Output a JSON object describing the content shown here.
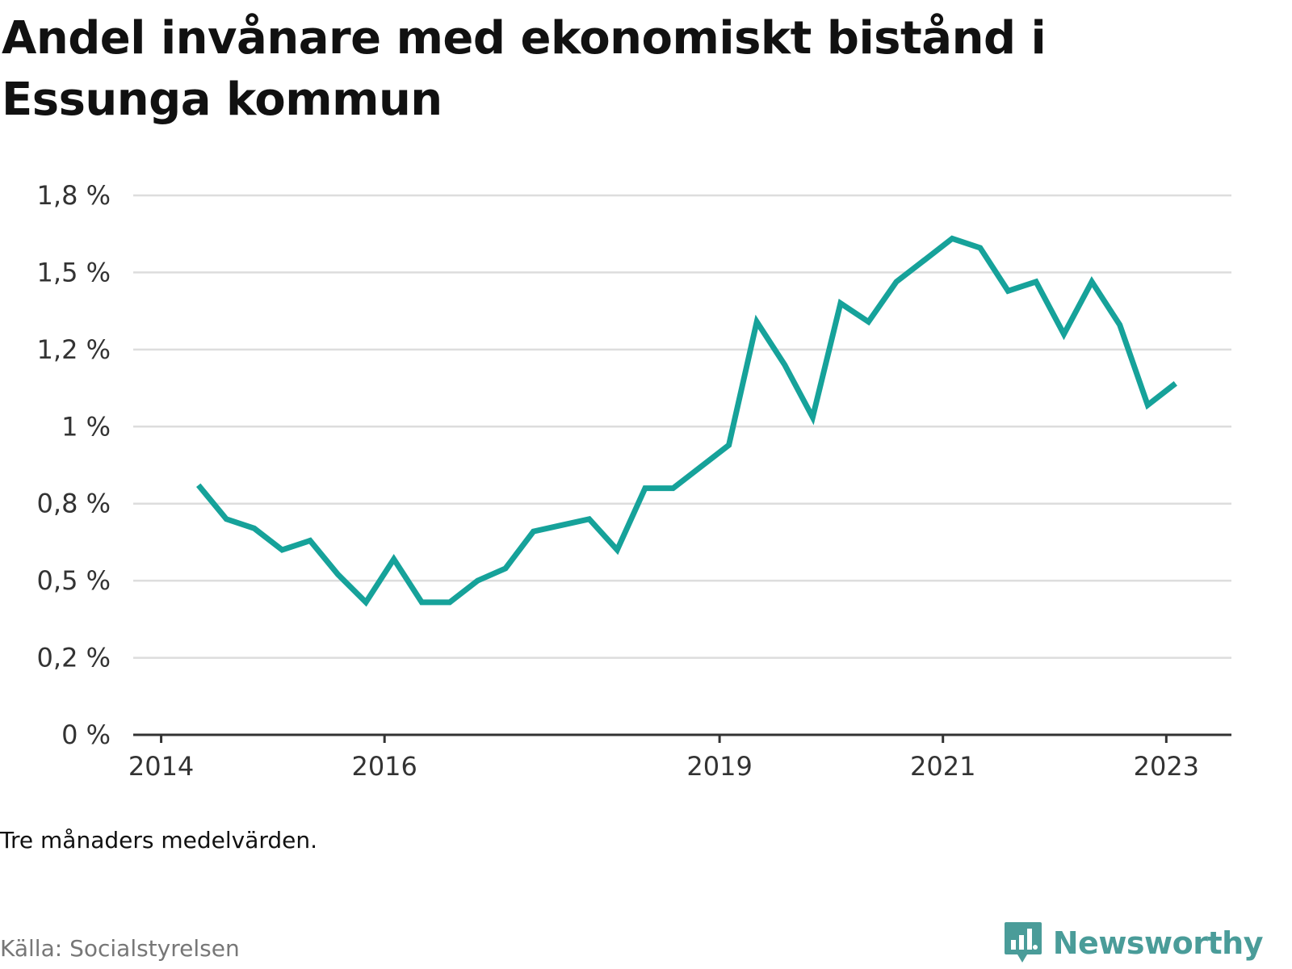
{
  "title": "Andel invånare med ekonomiskt bistånd i Essunga kommun",
  "note": "Tre månaders medelvärden.",
  "source": "Källa: Socialstyrelsen",
  "brand": {
    "name": "Newsworthy",
    "icon": "newsworthy-chart-bubble-icon",
    "color": "#4a9c99"
  },
  "chart_data": {
    "type": "line",
    "title": "Andel invånare med ekonomiskt bistånd i Essunga kommun",
    "xlabel": "",
    "ylabel": "",
    "x_ticks": [
      "2014",
      "2016",
      "2019",
      "2021",
      "2023"
    ],
    "y_ticks": [
      "0 %",
      "0,2 %",
      "0,5 %",
      "0,8 %",
      "1 %",
      "1,2 %",
      "1,5 %",
      "1,8 %"
    ],
    "ylim": [
      0,
      1.75
    ],
    "grid": true,
    "line_color": "#16a29a",
    "series": [
      {
        "x": [
          "2014-05",
          "2014-08",
          "2014-11",
          "2015-02",
          "2015-05",
          "2015-08",
          "2015-11",
          "2016-02",
          "2016-05",
          "2016-08",
          "2016-11",
          "2017-02",
          "2017-05",
          "2017-08",
          "2017-11",
          "2018-02",
          "2018-05",
          "2018-08",
          "2018-11",
          "2019-02",
          "2019-05",
          "2019-08",
          "2019-11",
          "2020-02",
          "2020-05",
          "2020-08",
          "2020-11",
          "2021-02",
          "2021-05",
          "2021-08",
          "2021-11",
          "2022-02",
          "2022-05",
          "2022-08",
          "2022-11",
          "2023-02"
        ],
        "values": [
          0.81,
          0.7,
          0.67,
          0.6,
          0.63,
          0.52,
          0.43,
          0.57,
          0.43,
          0.43,
          0.5,
          0.54,
          0.66,
          0.68,
          0.7,
          0.6,
          0.8,
          0.8,
          0.87,
          0.94,
          1.34,
          1.2,
          1.03,
          1.4,
          1.34,
          1.47,
          1.54,
          1.61,
          1.58,
          1.44,
          1.47,
          1.3,
          1.47,
          1.33,
          1.07,
          1.14
        ]
      }
    ]
  }
}
